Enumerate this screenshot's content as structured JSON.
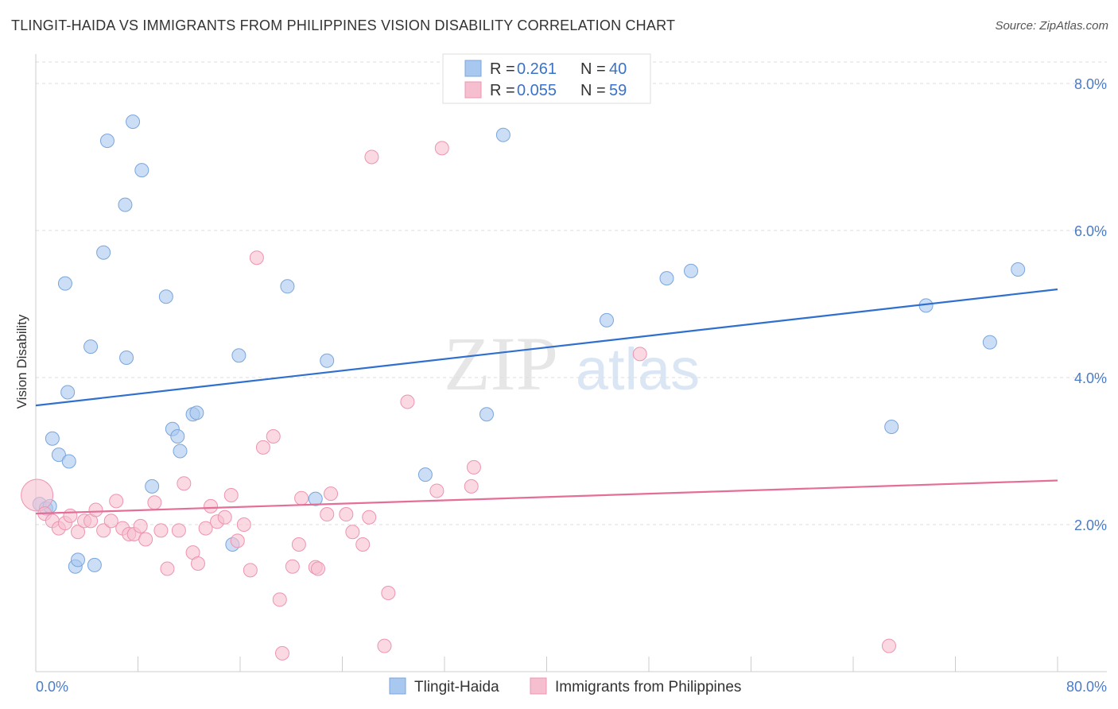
{
  "title": "TLINGIT-HAIDA VS IMMIGRANTS FROM PHILIPPINES VISION DISABILITY CORRELATION CHART",
  "source": "Source: ZipAtlas.com",
  "watermark": {
    "zip": "ZIP",
    "atlas": "atlas"
  },
  "chart_data": {
    "type": "scatter",
    "title": "TLINGIT-HAIDA VS IMMIGRANTS FROM PHILIPPINES VISION DISABILITY CORRELATION CHART",
    "xlabel": "",
    "ylabel": "Vision Disability",
    "xlim": [
      0,
      80
    ],
    "ylim": [
      0,
      8.4
    ],
    "y_ticks": [
      2,
      4,
      6,
      8
    ],
    "y_tick_labels": [
      "2.0%",
      "4.0%",
      "6.0%",
      "8.0%"
    ],
    "x_tick_labels": [
      "0.0%",
      "80.0%"
    ],
    "grid": true,
    "legend_position": "top-center",
    "series": [
      {
        "name": "Tlingit-Haida",
        "color": "#a8c8ef",
        "stroke": "#7aa6dc",
        "line_color": "#2f6fce",
        "R": "0.261",
        "N": "40",
        "trend": {
          "x": [
            0,
            80
          ],
          "y": [
            3.62,
            5.2
          ]
        },
        "points": [
          [
            0.3,
            2.28
          ],
          [
            0.8,
            2.22
          ],
          [
            1.1,
            2.25
          ],
          [
            1.3,
            3.17
          ],
          [
            1.8,
            2.95
          ],
          [
            2.3,
            5.28
          ],
          [
            2.5,
            3.8
          ],
          [
            2.6,
            2.86
          ],
          [
            3.1,
            1.43
          ],
          [
            3.3,
            1.52
          ],
          [
            4.3,
            4.42
          ],
          [
            4.6,
            1.45
          ],
          [
            5.3,
            5.7
          ],
          [
            5.6,
            7.22
          ],
          [
            7.0,
            6.35
          ],
          [
            7.1,
            4.27
          ],
          [
            7.6,
            7.48
          ],
          [
            8.3,
            6.82
          ],
          [
            9.1,
            2.52
          ],
          [
            10.2,
            5.1
          ],
          [
            10.7,
            3.3
          ],
          [
            11.1,
            3.2
          ],
          [
            11.3,
            3.0
          ],
          [
            12.3,
            3.5
          ],
          [
            12.6,
            3.52
          ],
          [
            15.4,
            1.73
          ],
          [
            15.9,
            4.3
          ],
          [
            19.7,
            5.24
          ],
          [
            21.9,
            2.35
          ],
          [
            22.8,
            4.23
          ],
          [
            30.5,
            2.68
          ],
          [
            35.3,
            3.5
          ],
          [
            36.6,
            7.3
          ],
          [
            44.7,
            4.78
          ],
          [
            49.4,
            5.35
          ],
          [
            51.3,
            5.45
          ],
          [
            67.0,
            3.33
          ],
          [
            69.7,
            4.98
          ],
          [
            74.7,
            4.48
          ],
          [
            76.9,
            5.47
          ]
        ]
      },
      {
        "name": "Immigrants from Philippines",
        "color": "#f6bfd0",
        "stroke": "#ee94b0",
        "line_color": "#e56e97",
        "R": "0.055",
        "N": "59",
        "trend": {
          "x": [
            0,
            80
          ],
          "y": [
            2.15,
            2.6
          ]
        },
        "points": [
          [
            0.1,
            2.4
          ],
          [
            0.7,
            2.15
          ],
          [
            1.3,
            2.05
          ],
          [
            1.8,
            1.95
          ],
          [
            2.3,
            2.02
          ],
          [
            2.7,
            2.12
          ],
          [
            3.3,
            1.9
          ],
          [
            3.8,
            2.05
          ],
          [
            4.3,
            2.05
          ],
          [
            4.7,
            2.2
          ],
          [
            5.3,
            1.92
          ],
          [
            5.9,
            2.05
          ],
          [
            6.3,
            2.32
          ],
          [
            6.8,
            1.95
          ],
          [
            7.3,
            1.87
          ],
          [
            7.7,
            1.87
          ],
          [
            8.2,
            1.98
          ],
          [
            8.6,
            1.8
          ],
          [
            9.3,
            2.3
          ],
          [
            9.8,
            1.92
          ],
          [
            10.3,
            1.4
          ],
          [
            11.2,
            1.92
          ],
          [
            11.6,
            2.56
          ],
          [
            12.3,
            1.62
          ],
          [
            12.7,
            1.47
          ],
          [
            13.3,
            1.95
          ],
          [
            13.7,
            2.25
          ],
          [
            14.2,
            2.04
          ],
          [
            14.8,
            2.1
          ],
          [
            15.3,
            2.4
          ],
          [
            15.8,
            1.78
          ],
          [
            16.3,
            2.0
          ],
          [
            16.8,
            1.38
          ],
          [
            17.3,
            5.63
          ],
          [
            17.8,
            3.05
          ],
          [
            18.6,
            3.2
          ],
          [
            19.1,
            0.98
          ],
          [
            19.3,
            0.25
          ],
          [
            20.1,
            1.43
          ],
          [
            20.6,
            1.73
          ],
          [
            20.8,
            2.36
          ],
          [
            21.9,
            1.42
          ],
          [
            22.1,
            1.4
          ],
          [
            22.8,
            2.14
          ],
          [
            23.1,
            2.42
          ],
          [
            24.3,
            2.14
          ],
          [
            24.8,
            1.9
          ],
          [
            25.6,
            1.73
          ],
          [
            26.1,
            2.1
          ],
          [
            26.3,
            7.0
          ],
          [
            27.3,
            0.35
          ],
          [
            27.6,
            1.07
          ],
          [
            29.1,
            3.67
          ],
          [
            31.4,
            2.46
          ],
          [
            31.8,
            7.12
          ],
          [
            34.1,
            2.52
          ],
          [
            34.3,
            2.78
          ],
          [
            47.3,
            4.32
          ],
          [
            66.8,
            0.35
          ]
        ]
      }
    ]
  }
}
